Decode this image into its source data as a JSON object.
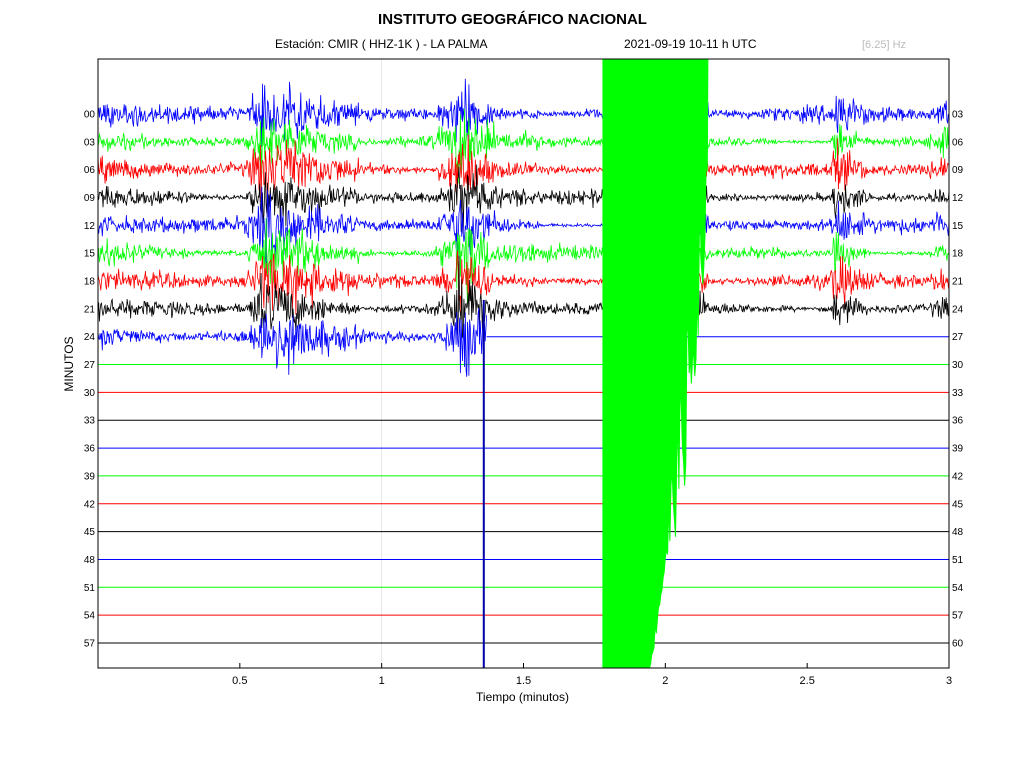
{
  "header": {
    "title": "INSTITUTO GEOGRÁFICO NACIONAL",
    "station": "Estación:  CMIR ( HHZ-1K ) - LA PALMA",
    "datetime": "2021-09-19  10-11 h UTC",
    "frequency": "[6.25] Hz"
  },
  "chart_data": {
    "type": "line",
    "title": "INSTITUTO GEOGRÁFICO NACIONAL",
    "xlabel": "Tiempo (minutos)",
    "ylabel": "MINUTOS",
    "xlim": [
      0,
      3
    ],
    "x_ticks": [
      "0.5",
      "1",
      "1.5",
      "2",
      "2.5",
      "3"
    ],
    "x_tick_values": [
      0.5,
      1,
      1.5,
      2,
      2.5,
      3
    ],
    "left_ticks": [
      "00",
      "03",
      "06",
      "09",
      "12",
      "15",
      "18",
      "21",
      "24",
      "27",
      "30",
      "33",
      "36",
      "39",
      "42",
      "45",
      "48",
      "51",
      "54",
      "57"
    ],
    "right_ticks": [
      "03",
      "06",
      "09",
      "12",
      "15",
      "18",
      "21",
      "24",
      "27",
      "30",
      "33",
      "36",
      "39",
      "42",
      "45",
      "48",
      "51",
      "54",
      "57",
      "60"
    ],
    "trace_colors": [
      "#0000ff",
      "#00ff00",
      "#ff0000",
      "#000000"
    ],
    "traces_recorded": 9,
    "recorded_last_trace_end_minutes": 1.37,
    "events": [
      {
        "start": 0.52,
        "end": 0.92,
        "amp": 1.0
      },
      {
        "start": 1.25,
        "end": 1.4,
        "amp": 0.8
      },
      {
        "start": 1.78,
        "end": 2.15,
        "amp": 1.6
      },
      {
        "start": 1.88,
        "end": 1.98,
        "amp": 1.2
      },
      {
        "start": 2.58,
        "end": 2.72,
        "amp": 0.7
      }
    ]
  }
}
